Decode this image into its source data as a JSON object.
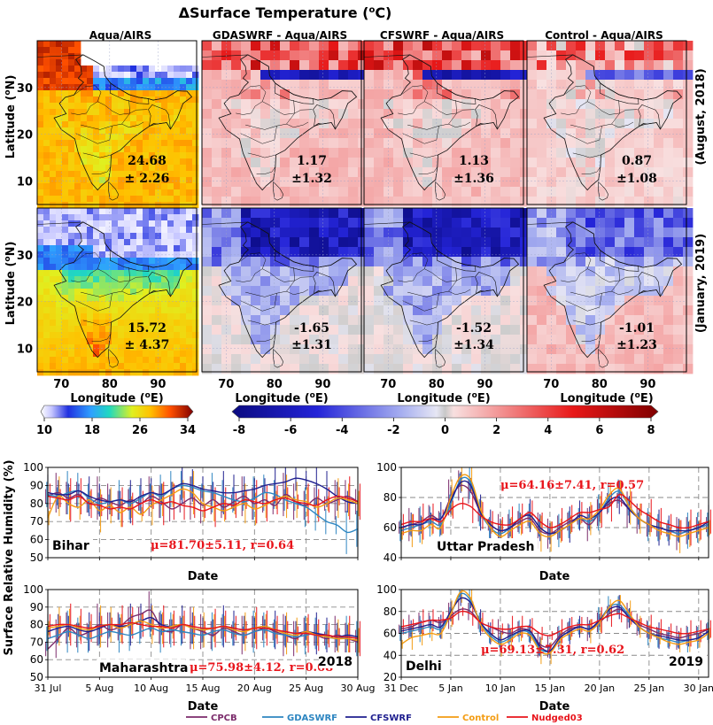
{
  "figure": {
    "main_title": "ΔSurface Temperature (",
    "main_title_sup": "o",
    "main_title_end": "C)",
    "map_column_titles": [
      "Aqua/AIRS",
      "GDASWRF - Aqua/AIRS",
      "CFSWRF - Aqua/AIRS",
      "Control - Aqua/AIRS"
    ],
    "row_labels": [
      "(August, 2018)",
      "(January, 2019)"
    ],
    "lat_label": "Latitude (",
    "lat_sup": "o",
    "lat_end": "N)",
    "lon_label": "Longitude (",
    "lon_sup": "o",
    "lon_end": "E)",
    "map_lat_ticks": [
      "30",
      "20",
      "10"
    ],
    "map_lon_ticks": [
      "70",
      "80",
      "90"
    ],
    "map_stats": {
      "aug": [
        [
          "24.68",
          "± 2.26"
        ],
        [
          "1.17",
          "±1.32"
        ],
        [
          "1.13",
          "±1.36"
        ],
        [
          "0.87",
          "±1.08"
        ]
      ],
      "jan": [
        [
          "15.72",
          "± 4.37"
        ],
        [
          "-1.65",
          "±1.31"
        ],
        [
          "-1.52",
          "±1.34"
        ],
        [
          "-1.01",
          "±1.23"
        ]
      ]
    },
    "colorbar_abs_ticks": [
      "10",
      "18",
      "26",
      "34"
    ],
    "colorbar_diff_ticks": [
      "-8",
      "-6",
      "-4",
      "-2",
      "0",
      "2",
      "4",
      "6",
      "8"
    ],
    "ts_ylabel": "Surface Relative Humidity (%)",
    "ts_xlabel": "Date",
    "legend": [
      {
        "name": "CPCB",
        "color": "#7b2b6b"
      },
      {
        "name": "GDASWRF",
        "color": "#2e86c1"
      },
      {
        "name": "CFSWRF",
        "color": "#1f1f8f"
      },
      {
        "name": "Control",
        "color": "#f39c12"
      },
      {
        "name": "Nudged03",
        "color": "#e8141b"
      }
    ]
  },
  "chart_data": [
    {
      "type": "heatmap",
      "panel": "Aqua/AIRS",
      "period": "August, 2018",
      "xlabel": "Longitude (oE)",
      "ylabel": "Latitude (oN)",
      "mean": 24.68,
      "std": 2.26,
      "colorbar_range": [
        10,
        34
      ]
    },
    {
      "type": "heatmap",
      "panel": "GDASWRF - Aqua/AIRS",
      "period": "August, 2018",
      "mean": 1.17,
      "std": 1.32,
      "colorbar_range": [
        -8,
        8
      ]
    },
    {
      "type": "heatmap",
      "panel": "CFSWRF - Aqua/AIRS",
      "period": "August, 2018",
      "mean": 1.13,
      "std": 1.36,
      "colorbar_range": [
        -8,
        8
      ]
    },
    {
      "type": "heatmap",
      "panel": "Control - Aqua/AIRS",
      "period": "August, 2018",
      "mean": 0.87,
      "std": 1.08,
      "colorbar_range": [
        -8,
        8
      ]
    },
    {
      "type": "heatmap",
      "panel": "Aqua/AIRS",
      "period": "January, 2019",
      "mean": 15.72,
      "std": 4.37,
      "colorbar_range": [
        10,
        34
      ]
    },
    {
      "type": "heatmap",
      "panel": "GDASWRF - Aqua/AIRS",
      "period": "January, 2019",
      "mean": -1.65,
      "std": 1.31,
      "colorbar_range": [
        -8,
        8
      ]
    },
    {
      "type": "heatmap",
      "panel": "CFSWRF - Aqua/AIRS",
      "period": "January, 2019",
      "mean": -1.52,
      "std": 1.34,
      "colorbar_range": [
        -8,
        8
      ]
    },
    {
      "type": "heatmap",
      "panel": "Control - Aqua/AIRS",
      "period": "January, 2019",
      "mean": -1.01,
      "std": 1.23,
      "colorbar_range": [
        -8,
        8
      ]
    },
    {
      "type": "line",
      "panel": "Bihar",
      "year": "",
      "stat": "μ=81.70±5.11, r=0.64",
      "x": [
        0,
        1,
        2,
        3,
        4,
        5,
        6,
        7,
        8,
        9,
        10,
        11,
        12,
        13,
        14,
        15,
        16,
        17,
        18,
        19,
        20,
        21,
        22,
        23,
        24,
        25,
        26,
        27,
        28,
        29,
        30
      ],
      "x_ticks": [
        "31 Jul",
        "5 Aug",
        "10 Aug",
        "15 Aug",
        "20 Aug",
        "25 Aug",
        "30 Aug"
      ],
      "ylim": [
        50,
        100
      ],
      "y_ticks": [
        50,
        60,
        70,
        80,
        90,
        100
      ],
      "series": [
        {
          "name": "CPCB",
          "values": [
            84,
            86,
            83,
            85,
            80,
            83,
            81,
            79,
            82,
            80,
            84,
            81,
            77,
            80,
            83,
            79,
            82,
            78,
            81,
            84,
            80,
            82,
            79,
            85,
            81,
            79,
            83,
            80,
            82,
            84,
            81
          ]
        },
        {
          "name": "GDASWRF",
          "values": [
            85,
            84,
            86,
            87,
            83,
            80,
            81,
            82,
            80,
            83,
            86,
            84,
            88,
            90,
            89,
            87,
            86,
            84,
            82,
            81,
            83,
            86,
            85,
            82,
            80,
            78,
            74,
            70,
            68,
            64,
            66
          ]
        },
        {
          "name": "CFSWRF",
          "values": [
            86,
            85,
            85,
            87,
            84,
            82,
            81,
            82,
            81,
            84,
            86,
            85,
            88,
            91,
            90,
            88,
            87,
            86,
            86,
            87,
            88,
            90,
            91,
            92,
            94,
            93,
            91,
            88,
            84,
            81,
            80
          ]
        },
        {
          "name": "Control",
          "values": [
            72,
            84,
            80,
            78,
            82,
            76,
            79,
            75,
            78,
            74,
            79,
            82,
            85,
            88,
            86,
            80,
            78,
            76,
            78,
            80,
            77,
            79,
            82,
            84,
            82,
            81,
            78,
            80,
            83,
            82,
            80
          ]
        },
        {
          "name": "Nudged03",
          "values": [
            84,
            83,
            82,
            84,
            80,
            79,
            77,
            78,
            77,
            80,
            82,
            80,
            81,
            79,
            78,
            76,
            78,
            80,
            79,
            82,
            81,
            80,
            82,
            83,
            81,
            80,
            79,
            82,
            84,
            83,
            81
          ]
        }
      ]
    },
    {
      "type": "line",
      "panel": "Uttar Pradesh",
      "year": "",
      "stat": "μ=64.16±7.41, r=0.57",
      "x": [
        0,
        1,
        2,
        3,
        4,
        5,
        6,
        7,
        8,
        9,
        10,
        11,
        12,
        13,
        14,
        15,
        16,
        17,
        18,
        19,
        20,
        21,
        22,
        23,
        24,
        25,
        26,
        27,
        28,
        29,
        30,
        31
      ],
      "x_ticks": [
        "31 Dec",
        "5 Jan",
        "10 Jan",
        "15 Jan",
        "20 Jan",
        "25 Jan",
        "30 Jan"
      ],
      "ylim": [
        40,
        100
      ],
      "y_ticks": [
        40,
        60,
        80,
        100
      ],
      "series": [
        {
          "name": "CPCB",
          "values": [
            60,
            62,
            64,
            68,
            66,
            80,
            88,
            84,
            70,
            62,
            58,
            60,
            64,
            66,
            58,
            56,
            60,
            64,
            66,
            62,
            70,
            76,
            78,
            72,
            66,
            62,
            60,
            58,
            56,
            58,
            60,
            62
          ]
        },
        {
          "name": "GDASWRF",
          "values": [
            58,
            60,
            62,
            64,
            62,
            76,
            92,
            90,
            70,
            60,
            56,
            60,
            66,
            68,
            60,
            56,
            58,
            62,
            66,
            64,
            70,
            80,
            84,
            74,
            66,
            62,
            60,
            58,
            56,
            58,
            60,
            62
          ]
        },
        {
          "name": "CFSWRF",
          "values": [
            60,
            62,
            62,
            66,
            66,
            78,
            90,
            88,
            70,
            62,
            58,
            60,
            66,
            68,
            60,
            56,
            58,
            62,
            68,
            66,
            70,
            78,
            80,
            72,
            66,
            62,
            60,
            58,
            58,
            58,
            60,
            64
          ]
        },
        {
          "name": "Control",
          "values": [
            56,
            58,
            58,
            62,
            60,
            80,
            94,
            92,
            72,
            60,
            54,
            58,
            62,
            64,
            56,
            54,
            58,
            62,
            66,
            66,
            72,
            82,
            86,
            74,
            66,
            62,
            58,
            56,
            54,
            56,
            58,
            60
          ]
        },
        {
          "name": "Nudged03",
          "values": [
            62,
            64,
            64,
            66,
            64,
            72,
            76,
            74,
            68,
            64,
            62,
            62,
            66,
            70,
            64,
            60,
            62,
            66,
            70,
            70,
            72,
            74,
            82,
            78,
            72,
            68,
            64,
            62,
            60,
            60,
            62,
            64
          ]
        }
      ]
    },
    {
      "type": "line",
      "panel": "Maharashtra",
      "year": "2018",
      "stat": "μ=75.98±4.12, r=0.68",
      "x": [
        0,
        1,
        2,
        3,
        4,
        5,
        6,
        7,
        8,
        9,
        10,
        11,
        12,
        13,
        14,
        15,
        16,
        17,
        18,
        19,
        20,
        21,
        22,
        23,
        24,
        25,
        26,
        27,
        28,
        29,
        30
      ],
      "x_ticks": [
        "31 Jul",
        "5 Aug",
        "10 Aug",
        "15 Aug",
        "20 Aug",
        "25 Aug",
        "30 Aug"
      ],
      "ylim": [
        50,
        100
      ],
      "y_ticks": [
        50,
        60,
        70,
        80,
        90,
        100
      ],
      "series": [
        {
          "name": "CPCB",
          "values": [
            66,
            72,
            78,
            74,
            76,
            80,
            77,
            79,
            84,
            86,
            88,
            78,
            76,
            80,
            78,
            76,
            74,
            78,
            76,
            74,
            76,
            78,
            76,
            74,
            72,
            76,
            74,
            72,
            74,
            72,
            70
          ]
        },
        {
          "name": "GDASWRF",
          "values": [
            72,
            74,
            76,
            74,
            72,
            74,
            76,
            75,
            74,
            76,
            78,
            76,
            77,
            76,
            75,
            74,
            76,
            77,
            75,
            74,
            76,
            77,
            75,
            74,
            73,
            74,
            75,
            73,
            72,
            73,
            72
          ]
        },
        {
          "name": "CFSWRF",
          "values": [
            76,
            78,
            79,
            77,
            76,
            78,
            80,
            79,
            80,
            82,
            84,
            80,
            79,
            80,
            78,
            77,
            78,
            79,
            78,
            77,
            78,
            79,
            77,
            76,
            75,
            76,
            75,
            74,
            73,
            74,
            73
          ]
        },
        {
          "name": "Control",
          "values": [
            78,
            79,
            80,
            78,
            77,
            79,
            80,
            78,
            80,
            82,
            80,
            78,
            79,
            80,
            78,
            77,
            78,
            79,
            77,
            76,
            78,
            79,
            77,
            75,
            74,
            76,
            74,
            73,
            72,
            72,
            71
          ]
        },
        {
          "name": "Nudged03",
          "values": [
            79,
            80,
            80,
            79,
            78,
            79,
            80,
            80,
            81,
            80,
            79,
            79,
            78,
            80,
            79,
            78,
            78,
            79,
            78,
            77,
            78,
            78,
            77,
            76,
            75,
            75,
            74,
            74,
            73,
            73,
            72
          ]
        }
      ]
    },
    {
      "type": "line",
      "panel": "Delhi",
      "year": "2019",
      "stat": "μ=69.13±7.31, r=0.62",
      "x": [
        0,
        1,
        2,
        3,
        4,
        5,
        6,
        7,
        8,
        9,
        10,
        11,
        12,
        13,
        14,
        15,
        16,
        17,
        18,
        19,
        20,
        21,
        22,
        23,
        24,
        25,
        26,
        27,
        28,
        29,
        30,
        31
      ],
      "x_ticks": [
        "31 Dec",
        "5 Jan",
        "10 Jan",
        "15 Jan",
        "20 Jan",
        "25 Jan",
        "30 Jan"
      ],
      "ylim": [
        20,
        100
      ],
      "y_ticks": [
        20,
        40,
        60,
        80,
        100
      ],
      "series": [
        {
          "name": "CPCB",
          "values": [
            64,
            66,
            70,
            72,
            70,
            76,
            82,
            80,
            70,
            66,
            62,
            60,
            64,
            62,
            50,
            48,
            58,
            64,
            66,
            64,
            70,
            78,
            82,
            76,
            68,
            64,
            60,
            58,
            56,
            58,
            60,
            64
          ]
        },
        {
          "name": "GDASWRF",
          "values": [
            60,
            62,
            64,
            66,
            64,
            78,
            96,
            90,
            70,
            58,
            52,
            56,
            62,
            60,
            46,
            44,
            56,
            62,
            66,
            64,
            72,
            84,
            86,
            76,
            66,
            60,
            56,
            54,
            52,
            54,
            56,
            62
          ]
        },
        {
          "name": "CFSWRF",
          "values": [
            62,
            64,
            66,
            68,
            66,
            80,
            92,
            88,
            70,
            60,
            54,
            58,
            62,
            62,
            48,
            44,
            56,
            62,
            66,
            64,
            72,
            82,
            84,
            74,
            66,
            60,
            58,
            56,
            54,
            54,
            56,
            62
          ]
        },
        {
          "name": "Control",
          "values": [
            50,
            56,
            58,
            60,
            60,
            78,
            98,
            92,
            68,
            56,
            50,
            54,
            60,
            58,
            44,
            42,
            54,
            60,
            64,
            62,
            70,
            84,
            90,
            78,
            66,
            60,
            56,
            52,
            50,
            52,
            54,
            60
          ]
        },
        {
          "name": "Nudged03",
          "values": [
            66,
            68,
            70,
            72,
            72,
            74,
            80,
            78,
            70,
            66,
            64,
            64,
            66,
            66,
            60,
            58,
            62,
            66,
            68,
            68,
            72,
            76,
            78,
            74,
            70,
            66,
            64,
            62,
            60,
            60,
            62,
            64
          ]
        }
      ]
    }
  ]
}
